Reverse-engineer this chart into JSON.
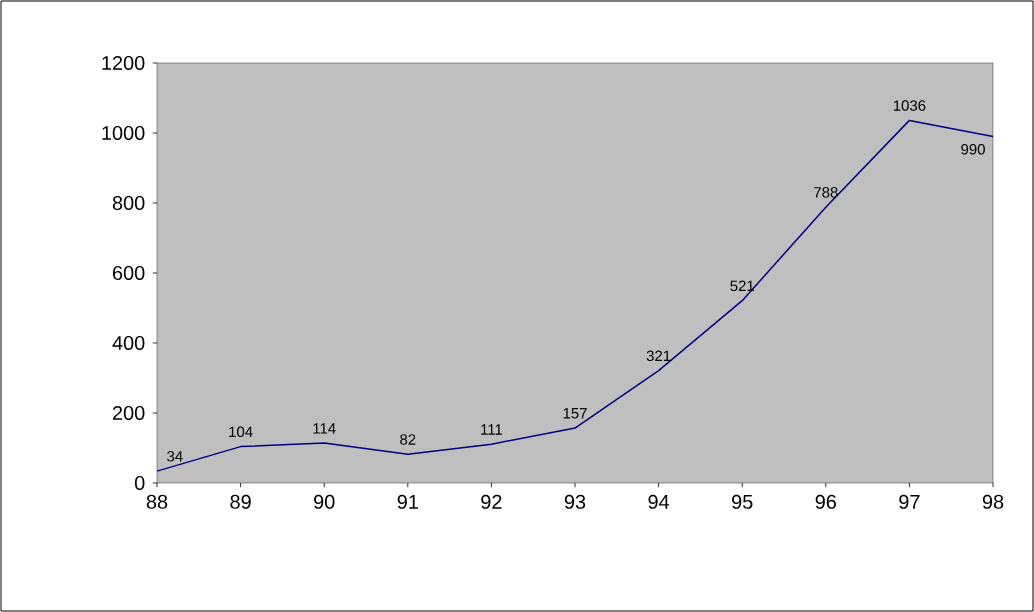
{
  "chart_data": {
    "type": "line",
    "categories": [
      "88",
      "89",
      "90",
      "91",
      "92",
      "93",
      "94",
      "95",
      "96",
      "97",
      "98"
    ],
    "values": [
      34,
      104,
      114,
      82,
      111,
      157,
      321,
      521,
      788,
      1036,
      990
    ],
    "color": "#000080",
    "ylim": [
      0,
      1200
    ],
    "yticks": [
      0,
      200,
      400,
      600,
      800,
      1000,
      1200
    ],
    "data_labels": true,
    "marker": "none",
    "grid": false
  }
}
